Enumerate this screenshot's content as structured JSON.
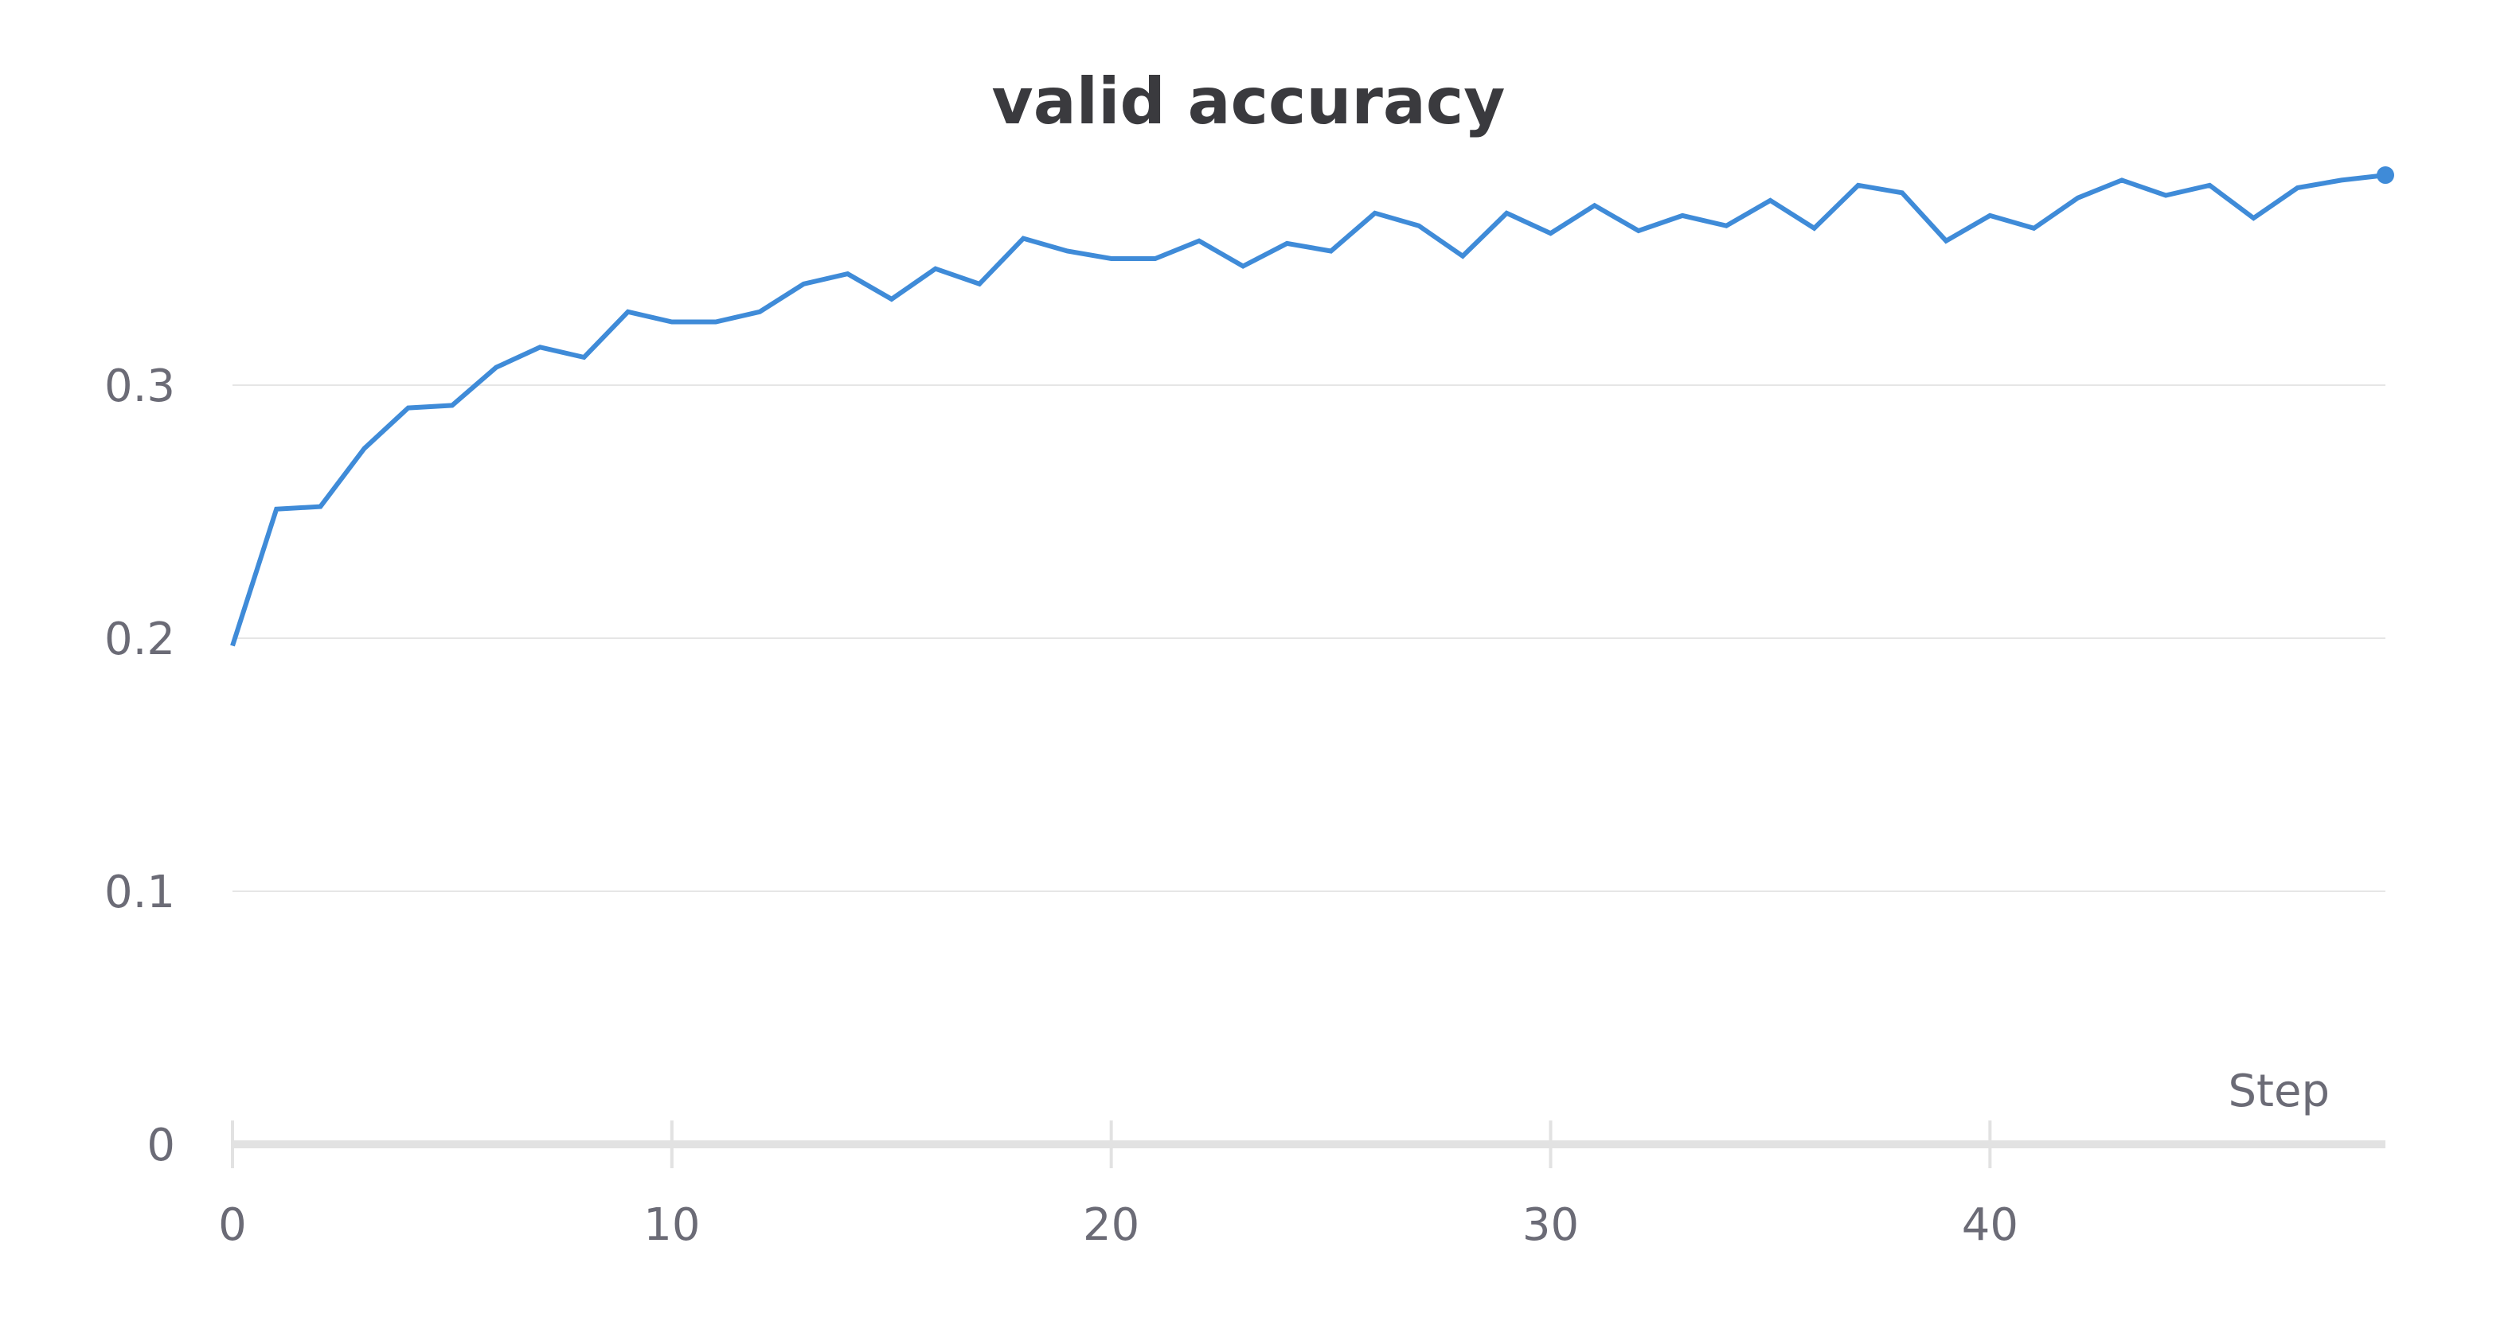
{
  "chart_data": {
    "type": "line",
    "title": "valid accuracy",
    "xlabel": "Step",
    "ylabel": "",
    "xlim": [
      0,
      49
    ],
    "ylim": [
      0,
      0.38
    ],
    "x_ticks": [
      0,
      10,
      20,
      30,
      40
    ],
    "x_tick_labels": [
      "0",
      "10",
      "20",
      "30",
      "40"
    ],
    "y_ticks": [
      0,
      0.1,
      0.2,
      0.3
    ],
    "y_tick_labels": [
      "0",
      "0.1",
      "0.2",
      "0.3"
    ],
    "grid": "horizontal",
    "legend": "none",
    "colors": {
      "line": "#3f8bd8",
      "grid": "#e6e6e6",
      "axis": "#e2e2e2"
    },
    "series": [
      {
        "x": [
          0,
          1,
          2,
          3,
          4,
          5,
          6,
          7,
          8,
          9,
          10,
          11,
          12,
          13,
          14,
          15,
          16,
          17,
          18,
          19,
          20,
          21,
          22,
          23,
          24,
          25,
          26,
          27,
          28,
          29,
          30,
          31,
          32,
          33,
          34,
          35,
          36,
          37,
          38,
          39,
          40,
          41,
          42,
          43,
          44,
          45,
          46,
          47,
          48,
          49
        ],
        "values": [
          0.197,
          0.251,
          0.252,
          0.275,
          0.291,
          0.292,
          0.307,
          0.315,
          0.311,
          0.329,
          0.325,
          0.325,
          0.329,
          0.34,
          0.344,
          0.334,
          0.346,
          0.34,
          0.358,
          0.353,
          0.35,
          0.35,
          0.357,
          0.347,
          0.356,
          0.353,
          0.368,
          0.363,
          0.351,
          0.368,
          0.36,
          0.371,
          0.361,
          0.367,
          0.363,
          0.373,
          0.362,
          0.379,
          0.376,
          0.357,
          0.367,
          0.362,
          0.374,
          0.381,
          0.375,
          0.379,
          0.366,
          0.378,
          0.381,
          0.383
        ]
      }
    ]
  }
}
